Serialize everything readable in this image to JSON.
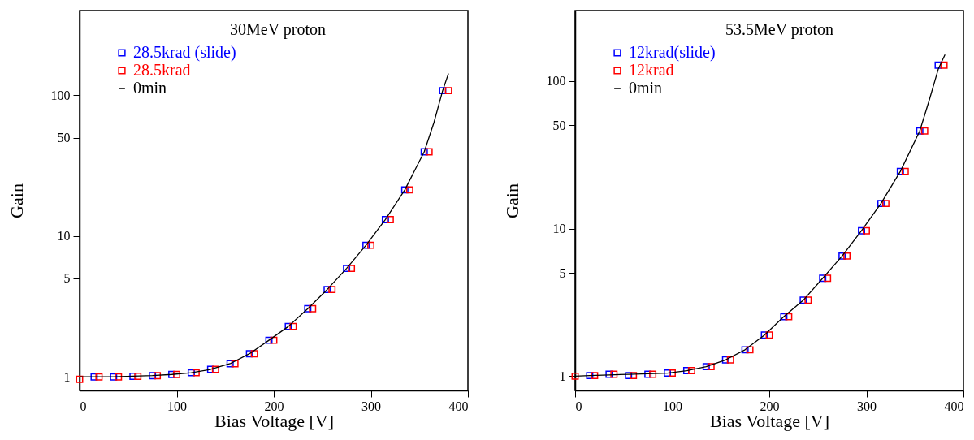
{
  "chart_data": [
    {
      "type": "scatter",
      "annotations": [
        "30MeV proton"
      ],
      "xlabel": "Bias Voltage [V]",
      "ylabel": "Gain",
      "log": "y",
      "xlim": [
        0,
        400
      ],
      "xticks": [
        0,
        100,
        200,
        300,
        400
      ],
      "ylim": [
        0.8,
        400
      ],
      "yticks": [
        1,
        5,
        10,
        50,
        100
      ],
      "grid": false,
      "legend": "top left",
      "marker": "square",
      "series": [
        {
          "name": "28.5krad (slide)",
          "color": "#0000ff",
          "x": [
            15,
            35,
            55,
            75,
            95,
            115,
            135,
            155,
            175,
            195,
            215,
            235,
            255,
            275,
            295,
            315,
            335,
            355,
            374
          ],
          "values": [
            1.0,
            1.0,
            1.01,
            1.02,
            1.04,
            1.07,
            1.13,
            1.24,
            1.46,
            1.82,
            2.28,
            3.05,
            4.17,
            5.89,
            8.6,
            13.1,
            21.3,
            39.7,
            108
          ]
        },
        {
          "name": "28.5krad",
          "color": "#ff0000",
          "x": [
            0,
            20,
            40,
            60,
            80,
            100,
            120,
            140,
            160,
            180,
            200,
            220,
            240,
            260,
            280,
            300,
            320,
            340,
            360,
            380
          ],
          "values": [
            0.96,
            1.0,
            1.0,
            1.01,
            1.02,
            1.04,
            1.07,
            1.13,
            1.24,
            1.46,
            1.82,
            2.28,
            3.05,
            4.17,
            5.89,
            8.6,
            13.1,
            21.3,
            39.7,
            108
          ]
        },
        {
          "name": "0min",
          "type": "line",
          "marker": "none",
          "color": "#000000",
          "x": [
            0,
            15,
            35,
            55,
            75,
            95,
            115,
            135,
            155,
            175,
            195,
            215,
            235,
            255,
            275,
            295,
            315,
            335,
            355,
            365,
            374,
            380
          ],
          "values": [
            1.0,
            1.0,
            1.0,
            1.01,
            1.02,
            1.04,
            1.07,
            1.13,
            1.24,
            1.46,
            1.82,
            2.28,
            3.05,
            4.17,
            5.89,
            8.6,
            13.1,
            21.3,
            39.7,
            64,
            108,
            143
          ]
        }
      ]
    },
    {
      "type": "scatter",
      "annotations": [
        "53.5MeV proton"
      ],
      "xlabel": "Bias Voltage [V]",
      "ylabel": "Gain",
      "log": "y",
      "xlim": [
        0,
        400
      ],
      "xticks": [
        0,
        100,
        200,
        300,
        400
      ],
      "ylim": [
        0.8,
        300
      ],
      "yticks": [
        1,
        5,
        10,
        50,
        100
      ],
      "grid": false,
      "legend": "top left",
      "marker": "square",
      "series": [
        {
          "name": "12krad(slide)",
          "color": "#0000ff",
          "x": [
            15,
            35,
            55,
            75,
            95,
            115,
            135,
            155,
            175,
            195,
            215,
            235,
            255,
            275,
            295,
            315,
            335,
            355,
            374
          ],
          "values": [
            1.01,
            1.03,
            1.01,
            1.03,
            1.05,
            1.09,
            1.16,
            1.29,
            1.51,
            1.9,
            2.53,
            3.27,
            4.61,
            6.52,
            9.67,
            14.8,
            24.4,
            45.9,
            128
          ]
        },
        {
          "name": "12krad",
          "color": "#ff0000",
          "x": [
            0,
            20,
            40,
            60,
            80,
            100,
            120,
            140,
            160,
            180,
            200,
            220,
            240,
            260,
            280,
            300,
            320,
            340,
            360,
            380
          ],
          "values": [
            1.0,
            1.01,
            1.03,
            1.01,
            1.03,
            1.05,
            1.09,
            1.16,
            1.29,
            1.51,
            1.9,
            2.53,
            3.27,
            4.61,
            6.52,
            9.67,
            14.8,
            24.4,
            45.9,
            128
          ]
        },
        {
          "name": "0min",
          "type": "line",
          "marker": "none",
          "color": "#000000",
          "x": [
            0,
            15,
            35,
            55,
            75,
            95,
            115,
            135,
            155,
            175,
            195,
            215,
            235,
            255,
            275,
            295,
            315,
            335,
            355,
            365,
            374,
            381
          ],
          "values": [
            1.0,
            1.01,
            1.02,
            1.03,
            1.04,
            1.05,
            1.09,
            1.16,
            1.29,
            1.51,
            1.9,
            2.53,
            3.27,
            4.61,
            6.52,
            9.67,
            14.8,
            24.4,
            45.9,
            75,
            120,
            151
          ]
        }
      ]
    }
  ]
}
